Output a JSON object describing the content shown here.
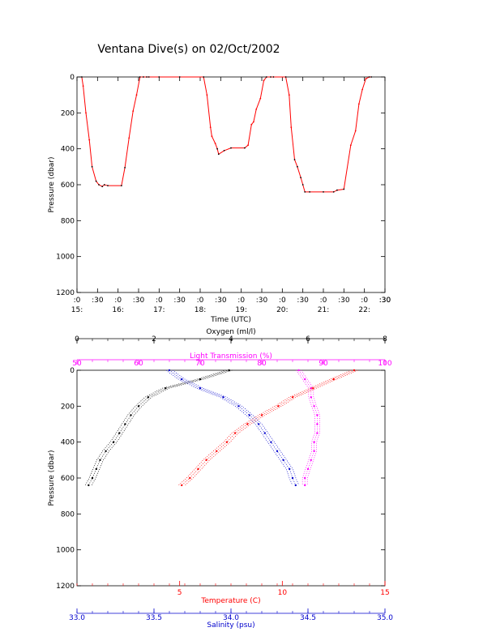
{
  "chart_data": [
    {
      "type": "line",
      "title": "Ventana Dive(s) on 02/Oct/2002",
      "xlabel": "Time (UTC)",
      "ylabel": "Pressure (dbar)",
      "ylim": [
        1200,
        0
      ],
      "yticks": [
        "0",
        "200",
        "400",
        "600",
        "800",
        "1000",
        "1200"
      ],
      "xlim": [
        "15:00",
        "22:30"
      ],
      "xticks_minutes": [
        ":0",
        ":30",
        ":0",
        ":30",
        ":0",
        ":30",
        ":0",
        ":30",
        ":0",
        ":30",
        ":0",
        ":30",
        ":0",
        ":30",
        ":0",
        ":30"
      ],
      "xticks_hours": [
        "15:",
        "16:",
        "17:",
        "18:",
        "19:",
        "20:",
        "21:",
        "22:"
      ],
      "colors": {
        "ascent_descent": "#ff0000",
        "bottom": "#000000"
      },
      "series": [
        {
          "x": [
            "15:07",
            "15:09",
            "15:13",
            "15:18",
            "15:22",
            "15:28",
            "15:32",
            "15:37",
            "15:40",
            "15:45",
            "16:05",
            "16:10",
            "16:16",
            "16:22",
            "16:27",
            "16:32",
            "16:37",
            "16:42",
            "16:45",
            "17:00",
            "17:30",
            "18:05",
            "18:10",
            "18:15",
            "18:17",
            "18:22",
            "18:25",
            "18:27",
            "18:35",
            "18:45",
            "19:05",
            "19:10",
            "19:15",
            "19:18",
            "19:22",
            "19:28",
            "19:33",
            "19:37",
            "19:43",
            "19:47",
            "20:05",
            "20:10",
            "20:13",
            "20:18",
            "20:22",
            "20:27",
            "20:30",
            "20:33",
            "20:40",
            "21:00",
            "21:15",
            "21:20",
            "21:30",
            "21:40",
            "21:47",
            "21:52",
            "21:57",
            "22:02",
            "22:07",
            "22:10"
          ],
          "y": [
            0,
            50,
            200,
            350,
            500,
            580,
            600,
            610,
            600,
            605,
            605,
            505,
            340,
            190,
            100,
            0,
            0,
            0,
            0,
            0,
            0,
            0,
            100,
            280,
            330,
            370,
            400,
            430,
            410,
            395,
            395,
            380,
            265,
            250,
            180,
            120,
            20,
            0,
            0,
            0,
            0,
            100,
            280,
            460,
            500,
            560,
            600,
            640,
            640,
            640,
            640,
            630,
            625,
            380,
            300,
            150,
            70,
            10,
            0,
            0
          ]
        }
      ]
    },
    {
      "type": "scatter",
      "ylabel": "Pressure (dbar)",
      "ylim": [
        1200,
        0
      ],
      "yticks": [
        "0",
        "200",
        "400",
        "600",
        "800",
        "1000",
        "1200"
      ],
      "axes": [
        {
          "label": "Oxygen (ml/l)",
          "range": [
            0,
            8
          ],
          "ticks": [
            "0",
            "2",
            "4",
            "6",
            "8"
          ],
          "color": "#000000",
          "position": "top"
        },
        {
          "label": "Light Transmission (%)",
          "range": [
            50,
            100
          ],
          "ticks": [
            "50",
            "60",
            "70",
            "80",
            "90",
            "100"
          ],
          "color": "#ff00ff",
          "position": "top"
        },
        {
          "label": "Temperature (C)",
          "range": [
            0,
            15
          ],
          "ticks": [
            "5",
            "10",
            "15"
          ],
          "color": "#ff0000",
          "position": "bottom"
        },
        {
          "label": "Salinity (psu)",
          "range": [
            33.0,
            35.0
          ],
          "ticks": [
            "33.0",
            "33.5",
            "34.0",
            "34.5",
            "35.0"
          ],
          "color": "#0000cc",
          "position": "bottom"
        }
      ],
      "series": [
        {
          "name": "Oxygen (ml/l)",
          "color": "#000000",
          "pressure": [
            0,
            50,
            100,
            150,
            200,
            250,
            300,
            350,
            400,
            450,
            500,
            550,
            600,
            640
          ],
          "values": [
            3.95,
            3.2,
            2.3,
            1.85,
            1.6,
            1.4,
            1.25,
            1.1,
            0.95,
            0.75,
            0.6,
            0.5,
            0.4,
            0.3
          ]
        },
        {
          "name": "Light Transmission (%)",
          "color": "#ff00ff",
          "pressure": [
            0,
            50,
            100,
            150,
            200,
            250,
            300,
            350,
            400,
            450,
            500,
            550,
            600,
            640
          ],
          "values": [
            86,
            87,
            88,
            88,
            88.5,
            89,
            89,
            89,
            88.5,
            88.5,
            88,
            87.5,
            87,
            87
          ]
        },
        {
          "name": "Temperature (C)",
          "color": "#ff0000",
          "pressure": [
            0,
            50,
            100,
            150,
            200,
            250,
            300,
            350,
            400,
            450,
            500,
            550,
            600,
            640
          ],
          "values": [
            13.5,
            12.5,
            11.5,
            10.5,
            9.8,
            9.0,
            8.3,
            7.7,
            7.3,
            6.8,
            6.3,
            5.9,
            5.5,
            5.1
          ]
        },
        {
          "name": "Salinity (psu)",
          "color": "#0000cc",
          "pressure": [
            0,
            50,
            100,
            150,
            200,
            250,
            300,
            350,
            400,
            450,
            500,
            550,
            600,
            640
          ],
          "values": [
            33.6,
            33.68,
            33.8,
            33.95,
            34.05,
            34.12,
            34.18,
            34.22,
            34.26,
            34.3,
            34.34,
            34.38,
            34.4,
            34.42
          ]
        }
      ]
    }
  ]
}
